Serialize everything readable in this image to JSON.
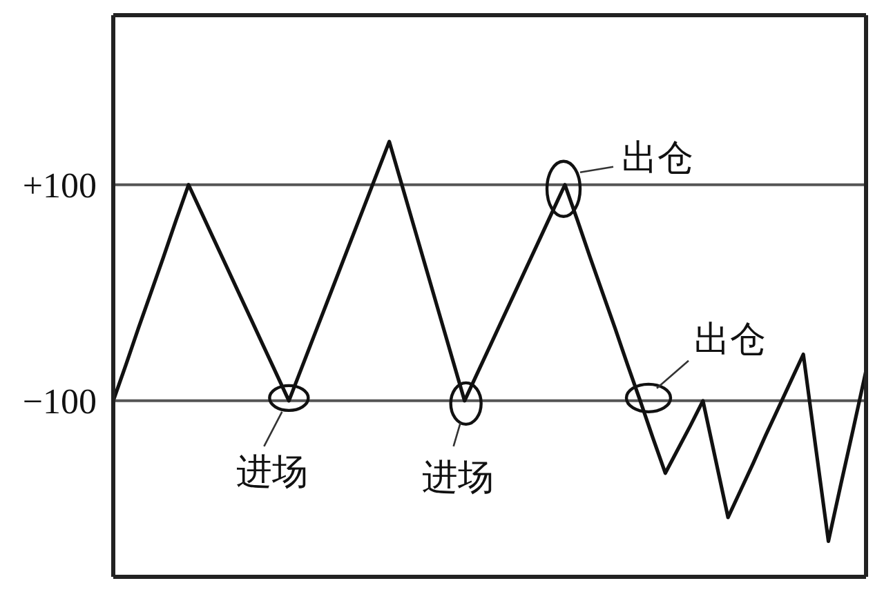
{
  "chart_data": {
    "type": "line",
    "categories": [
      null,
      null,
      null,
      null,
      null,
      null,
      null,
      null,
      null,
      null,
      null,
      null,
      null,
      null,
      null,
      null,
      null,
      null,
      null,
      null,
      null,
      null,
      null,
      null,
      null,
      null,
      null,
      null,
      null,
      null,
      null,
      null,
      null,
      null,
      null,
      null,
      null,
      null,
      null,
      null,
      null,
      null,
      null,
      null,
      null,
      null,
      null,
      null,
      null,
      null,
      null,
      null,
      null,
      null,
      null,
      null,
      null,
      null,
      null,
      null,
      null
    ],
    "values": [
      -100,
      -67,
      -33,
      0,
      33,
      67,
      100,
      75,
      50,
      25,
      0,
      -25,
      -50,
      -75,
      -100,
      -70,
      -40,
      -10,
      20,
      50,
      80,
      110,
      140,
      100,
      60,
      20,
      -20,
      -60,
      -100,
      -75,
      -50,
      -25,
      0,
      25,
      50,
      75,
      100,
      67,
      33,
      0,
      -33,
      -67,
      -100,
      -134,
      -167,
      -145,
      -123,
      -100,
      -154,
      -208,
      -183,
      -158,
      -132,
      -107,
      -82,
      -57,
      -144,
      -230,
      -177,
      -125,
      -72
    ],
    "color": "#111111",
    "ylim": [
      -263,
      257
    ],
    "yticks": [
      {
        "value": 100,
        "label": "+100"
      },
      {
        "value": -100,
        "label": "−100"
      }
    ],
    "grid": "y",
    "tick_labels": "y",
    "annotations": [
      "进场",
      "进场",
      "出仓",
      "出仓"
    ]
  }
}
